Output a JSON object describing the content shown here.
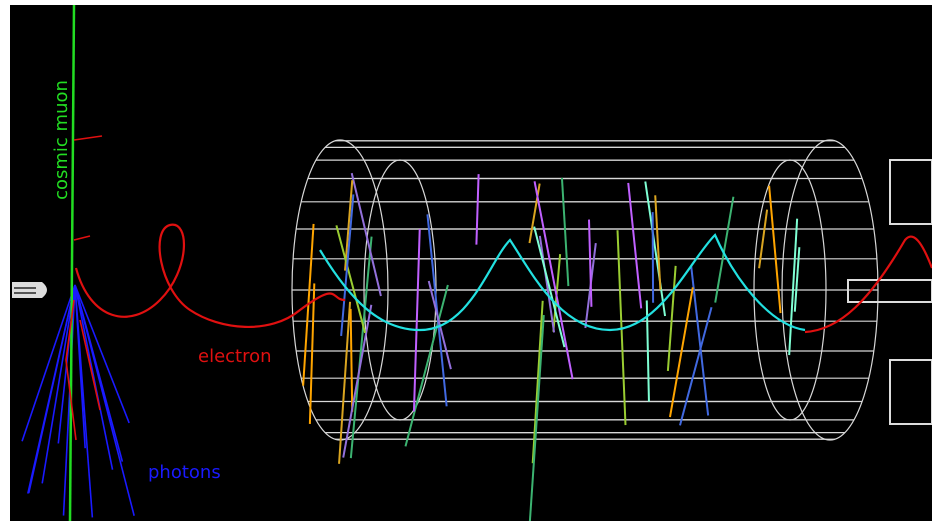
{
  "labels": {
    "muon": "cosmic muon",
    "electron": "electron",
    "photons": "photons"
  }
}
